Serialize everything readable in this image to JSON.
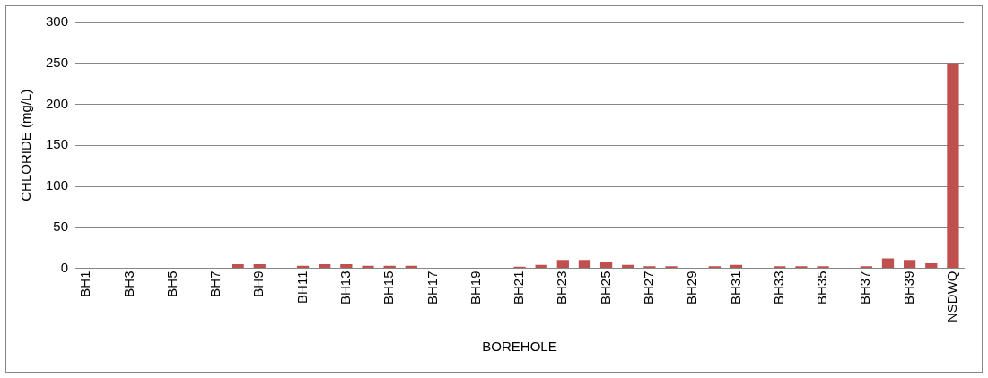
{
  "chart_data": {
    "type": "bar",
    "xlabel": "BOREHOLE",
    "ylabel": "CHLORIDE (mg/L)",
    "categories": [
      "BH1",
      null,
      "BH3",
      null,
      "BH5",
      null,
      "BH7",
      null,
      "BH9",
      null,
      "BH11",
      null,
      "BH13",
      null,
      "BH15",
      null,
      "BH17",
      null,
      "BH19",
      null,
      "BH21",
      null,
      "BH23",
      null,
      "BH25",
      null,
      "BH27",
      null,
      "BH29",
      null,
      "BH31",
      null,
      "BH33",
      null,
      "BH35",
      null,
      "BH37",
      null,
      "BH39",
      null,
      "NSDWQ"
    ],
    "values": [
      0,
      0,
      0,
      0,
      0,
      0,
      0,
      5,
      5,
      0,
      3,
      5,
      5,
      3,
      3,
      3,
      0,
      0,
      0,
      0,
      2,
      4,
      10,
      10,
      8,
      4,
      2.5,
      2.5,
      0,
      2.5,
      4,
      0,
      2.5,
      2.5,
      2.5,
      0,
      2.5,
      12,
      10,
      6,
      250
    ],
    "color": "#c0504d",
    "ylim": [
      0,
      300
    ],
    "yticks": [
      0,
      50,
      100,
      150,
      200,
      250,
      300
    ],
    "grid": "y",
    "legend": false
  }
}
